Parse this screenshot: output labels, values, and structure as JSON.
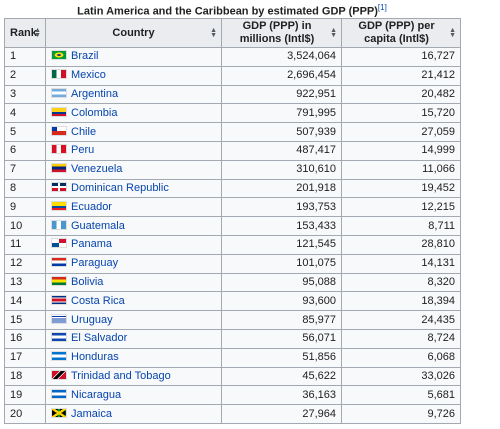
{
  "title": "Latin America and the Caribbean by estimated GDP (PPP)",
  "title_ref": "[1]",
  "table": {
    "headers": [
      "Rank",
      "Country",
      "GDP (PPP) in millions (Intl$)",
      "GDP (PPP) per capita (Intl$)"
    ],
    "rows": [
      [
        "1",
        "Brazil",
        "3,524,064",
        "16,727"
      ],
      [
        "2",
        "Mexico",
        "2,696,454",
        "21,412"
      ],
      [
        "3",
        "Argentina",
        "922,951",
        "20,482"
      ],
      [
        "4",
        "Colombia",
        "791,995",
        "15,720"
      ],
      [
        "5",
        "Chile",
        "507,939",
        "27,059"
      ],
      [
        "6",
        "Peru",
        "487,417",
        "14,999"
      ],
      [
        "7",
        "Venezuela",
        "310,610",
        "11,066"
      ],
      [
        "8",
        "Dominican Republic",
        "201,918",
        "19,452"
      ],
      [
        "9",
        "Ecuador",
        "193,753",
        "12,215"
      ],
      [
        "10",
        "Guatemala",
        "153,433",
        "8,711"
      ],
      [
        "11",
        "Panama",
        "121,545",
        "28,810"
      ],
      [
        "12",
        "Paraguay",
        "101,075",
        "14,131"
      ],
      [
        "13",
        "Bolivia",
        "95,088",
        "8,320"
      ],
      [
        "14",
        "Costa Rica",
        "93,600",
        "18,394"
      ],
      [
        "15",
        "Uruguay",
        "85,977",
        "24,435"
      ],
      [
        "16",
        "El Salvador",
        "56,071",
        "8,724"
      ],
      [
        "17",
        "Honduras",
        "51,856",
        "6,068"
      ],
      [
        "18",
        "Trinidad and Tobago",
        "45,622",
        "33,026"
      ],
      [
        "19",
        "Nicaragua",
        "36,163",
        "5,681"
      ],
      [
        "20",
        "Jamaica",
        "27,964",
        "9,726"
      ]
    ]
  }
}
